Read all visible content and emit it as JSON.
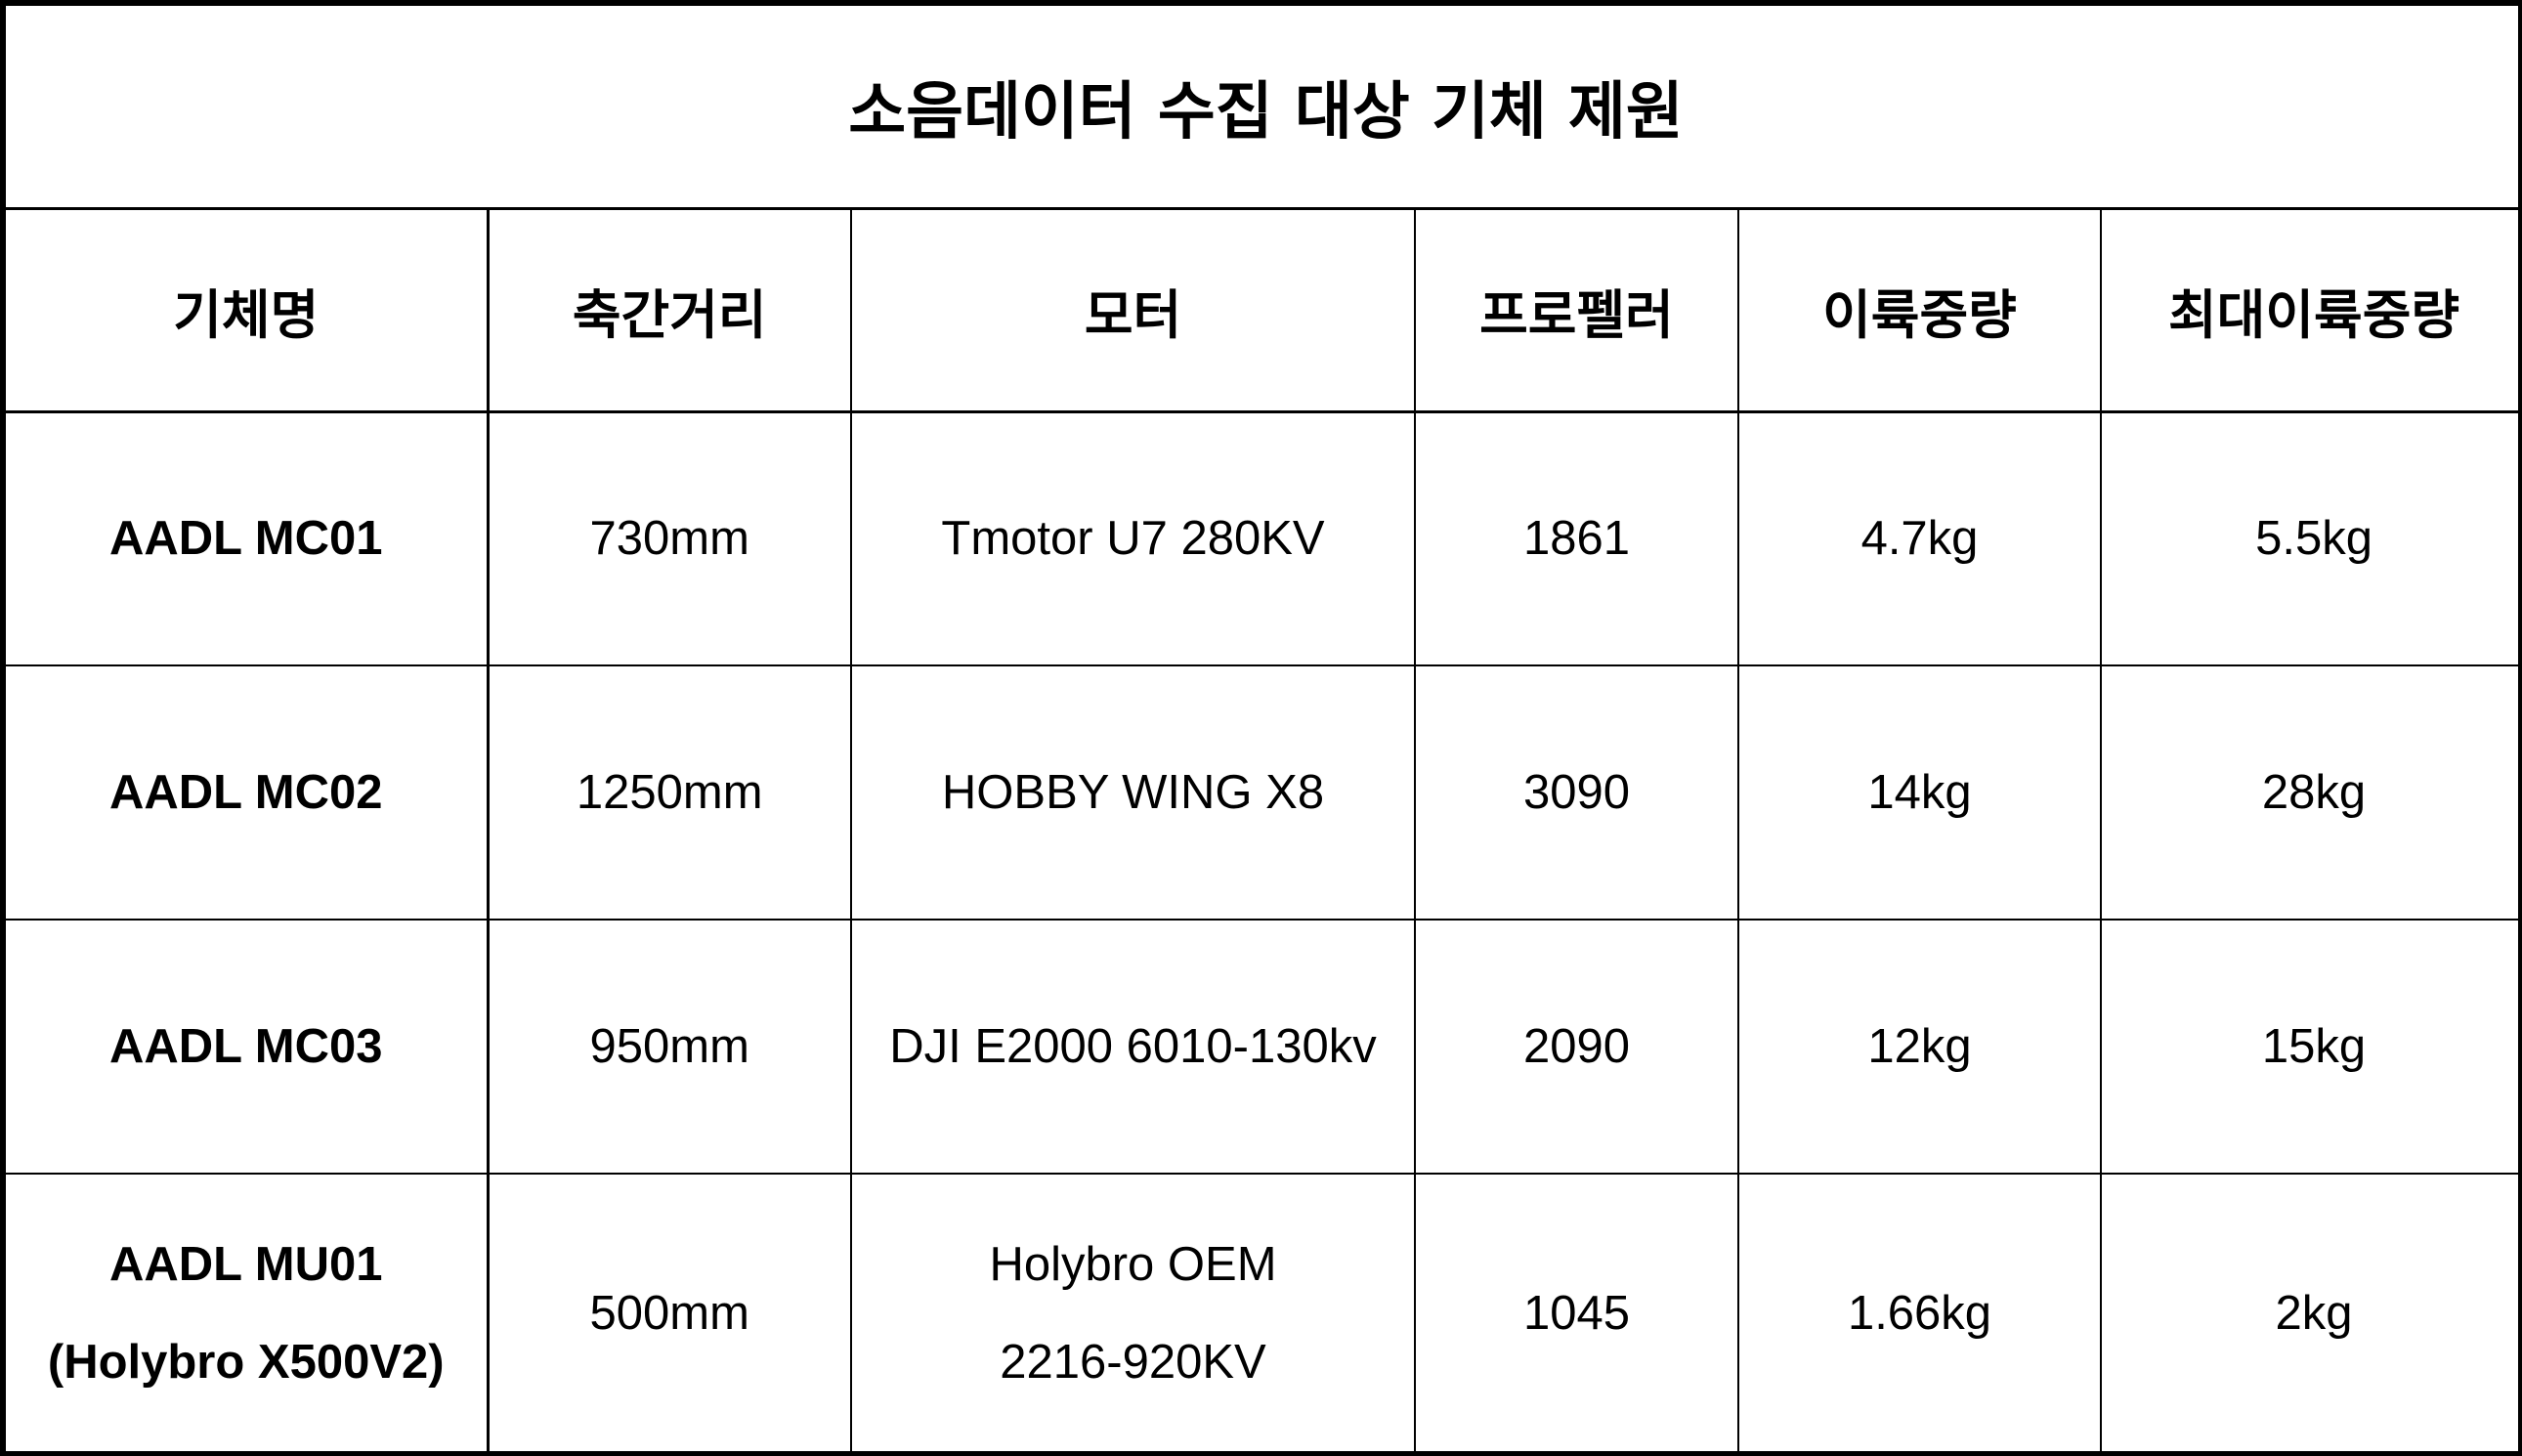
{
  "title": "소음데이터 수집 대상 기체 제원",
  "headers": [
    "기체명",
    "축간거리",
    "모터",
    "프로펠러",
    "이륙중량",
    "최대이륙중량"
  ],
  "rows": [
    {
      "name": [
        "AADL MC01"
      ],
      "wheelbase": "730mm",
      "motor": [
        "Tmotor U7 280KV"
      ],
      "propeller": "1861",
      "takeoff_weight": "4.7kg",
      "max_takeoff_weight": "5.5kg"
    },
    {
      "name": [
        "AADL MC02"
      ],
      "wheelbase": "1250mm",
      "motor": [
        "HOBBY WING X8"
      ],
      "propeller": "3090",
      "takeoff_weight": "14kg",
      "max_takeoff_weight": "28kg"
    },
    {
      "name": [
        "AADL MC03"
      ],
      "wheelbase": "950mm",
      "motor": [
        "DJI E2000 6010-130kv"
      ],
      "propeller": "2090",
      "takeoff_weight": "12kg",
      "max_takeoff_weight": "15kg"
    },
    {
      "name": [
        "AADL MU01",
        "(Holybro X500V2)"
      ],
      "wheelbase": "500mm",
      "motor": [
        "Holybro OEM",
        "2216-920KV"
      ],
      "propeller": "1045",
      "takeoff_weight": "1.66kg",
      "max_takeoff_weight": "2kg"
    }
  ]
}
